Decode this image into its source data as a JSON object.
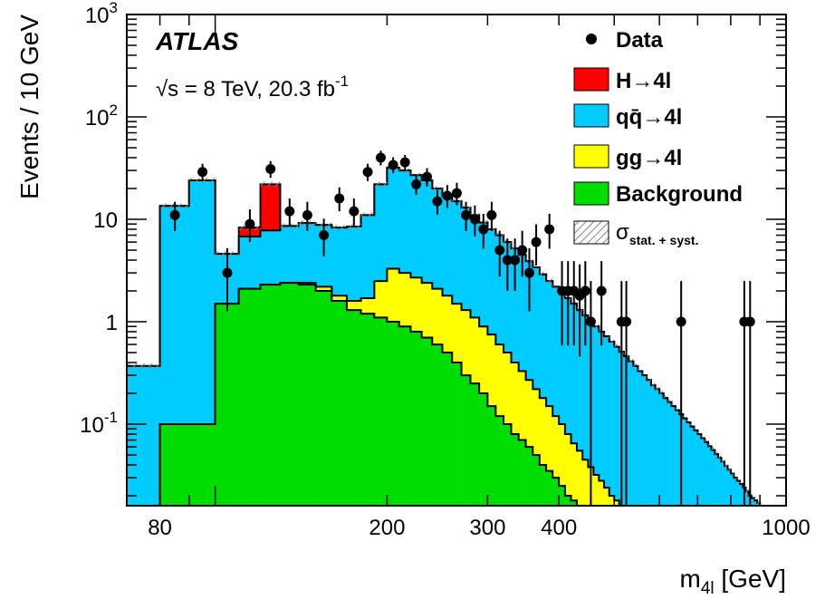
{
  "chart_data": {
    "type": "histogram",
    "experiment": "ATLAS",
    "energy_label": "√s = 8 TeV, 20.3 fb",
    "energy_sup": "-1",
    "xlabel": "m",
    "xlabel_sub": "4l",
    "xlabel_unit": " [GeV]",
    "ylabel": "Events / 10 GeV",
    "x_scale": "log",
    "y_scale": "log",
    "xlim": [
      70,
      1000
    ],
    "ylim": [
      0.016,
      1000
    ],
    "x_tick_labels": [
      {
        "value": 80,
        "label": "80"
      },
      {
        "value": 200,
        "label": "200"
      },
      {
        "value": 300,
        "label": "300"
      },
      {
        "value": 400,
        "label": "400"
      },
      {
        "value": 1000,
        "label": "1000"
      }
    ],
    "y_tick_labels": [
      {
        "value": 0.1,
        "base": "10",
        "exp": "-1"
      },
      {
        "value": 1,
        "base": "1",
        "exp": ""
      },
      {
        "value": 10,
        "base": "10",
        "exp": ""
      },
      {
        "value": 100,
        "base": "10",
        "exp": "2"
      },
      {
        "value": 1000,
        "base": "10",
        "exp": "3"
      }
    ],
    "colors": {
      "higgs": "#ff0000",
      "qqbar": "#00ccff",
      "gg": "#ffff00",
      "background": "#00dd00",
      "data": "#000000",
      "uncertainty": "#888888"
    },
    "legend": {
      "position": "top-right",
      "entries": [
        {
          "key": "data",
          "label": "Data",
          "style": "marker"
        },
        {
          "key": "higgs",
          "label": "H→4l",
          "style": "fill"
        },
        {
          "key": "qqbar",
          "label": "qq̄→4l",
          "style": "fill"
        },
        {
          "key": "gg",
          "label": "gg→4l",
          "style": "fill"
        },
        {
          "key": "background",
          "label": "Background",
          "style": "fill"
        },
        {
          "key": "uncertainty",
          "label": "σ",
          "sub": "stat. + syst.",
          "style": "hatch"
        }
      ]
    },
    "bin_edges": [
      70,
      80,
      90,
      100,
      110,
      120,
      130,
      140,
      150,
      160,
      170,
      180,
      190,
      200,
      210,
      220,
      230,
      240,
      250,
      260,
      270,
      280,
      290,
      300,
      310,
      320,
      330,
      340,
      350,
      360,
      370,
      380,
      390,
      400,
      410,
      420,
      430,
      440,
      450,
      460,
      470,
      480,
      490,
      500,
      510,
      520,
      530,
      540,
      550,
      560,
      570,
      580,
      590,
      600,
      610,
      620,
      630,
      640,
      650,
      660,
      670,
      680,
      690,
      700,
      710,
      720,
      730,
      740,
      750,
      760,
      770,
      780,
      790,
      800,
      810,
      820,
      830,
      840,
      850,
      860,
      870,
      880,
      890,
      900,
      910,
      920,
      930,
      940,
      950,
      960,
      970,
      980,
      990,
      1000
    ],
    "series": [
      {
        "key": "background",
        "name": "Background",
        "values": [
          0.016,
          0.1,
          0.1,
          1.5,
          2.1,
          2.3,
          2.4,
          2.3,
          2.0,
          1.6,
          1.3,
          1.2,
          1.1,
          1.0,
          0.9,
          0.8,
          0.7,
          0.6,
          0.5,
          0.4,
          0.3,
          0.25,
          0.2,
          0.15,
          0.12,
          0.1,
          0.08,
          0.07,
          0.06,
          0.05,
          0.04,
          0.035,
          0.03,
          0.025,
          0.02,
          0.018,
          0.016,
          0.016,
          0.016,
          0.016,
          0.016,
          0.016,
          0.016,
          0.016,
          0.016,
          0.016,
          0.016,
          0.016,
          0.016,
          0.016,
          0.016,
          0.016,
          0.016,
          0.016,
          0.016,
          0.016,
          0.016,
          0.016,
          0.016,
          0.016,
          0.016,
          0.016,
          0.016,
          0.016,
          0.016,
          0.016,
          0.016,
          0.016,
          0.016,
          0.016,
          0.016,
          0.016,
          0.016,
          0.016,
          0.016,
          0.016,
          0.016,
          0.016,
          0.016,
          0.016,
          0.016,
          0.016,
          0.016,
          0.016,
          0.016,
          0.016,
          0.016,
          0.016,
          0.016,
          0.016,
          0.016,
          0.016,
          0.016
        ]
      },
      {
        "key": "gg",
        "name": "gg→4l",
        "values": [
          0.016,
          0.1,
          0.1,
          1.5,
          2.1,
          2.3,
          2.4,
          2.4,
          2.2,
          1.8,
          1.6,
          1.7,
          2.5,
          3.3,
          3.0,
          2.7,
          2.4,
          2.1,
          1.8,
          1.5,
          1.3,
          1.1,
          0.9,
          0.75,
          0.6,
          0.5,
          0.4,
          0.33,
          0.27,
          0.22,
          0.18,
          0.15,
          0.12,
          0.1,
          0.08,
          0.065,
          0.055,
          0.045,
          0.038,
          0.032,
          0.028,
          0.024,
          0.02,
          0.018,
          0.016,
          0.016,
          0.016,
          0.016,
          0.016,
          0.016,
          0.016,
          0.016,
          0.016,
          0.016,
          0.016,
          0.016,
          0.016,
          0.016,
          0.016,
          0.016,
          0.016,
          0.016,
          0.016,
          0.016,
          0.016,
          0.016,
          0.016,
          0.016,
          0.016,
          0.016,
          0.016,
          0.016,
          0.016,
          0.016,
          0.016,
          0.016,
          0.016,
          0.016,
          0.016,
          0.016,
          0.016,
          0.016,
          0.016,
          0.016,
          0.016,
          0.016,
          0.016,
          0.016,
          0.016,
          0.016,
          0.016,
          0.016,
          0.016
        ]
      },
      {
        "key": "qqbar",
        "name": "qq̄→4l",
        "values": [
          0.37,
          13.5,
          24,
          4.6,
          6.8,
          7.8,
          8.6,
          9.2,
          8.8,
          8.3,
          8.5,
          11,
          22,
          32,
          30,
          27,
          24,
          20,
          17,
          15,
          13,
          11,
          9.3,
          8,
          7,
          6,
          5.2,
          4.5,
          3.9,
          3.4,
          2.9,
          2.5,
          2.2,
          1.9,
          1.7,
          1.5,
          1.3,
          1.15,
          1.0,
          0.9,
          0.8,
          0.72,
          0.64,
          0.57,
          0.51,
          0.46,
          0.41,
          0.37,
          0.33,
          0.3,
          0.27,
          0.24,
          0.22,
          0.2,
          0.18,
          0.165,
          0.15,
          0.137,
          0.125,
          0.114,
          0.104,
          0.095,
          0.087,
          0.08,
          0.073,
          0.067,
          0.061,
          0.056,
          0.051,
          0.047,
          0.043,
          0.039,
          0.036,
          0.033,
          0.03,
          0.028,
          0.026,
          0.024,
          0.022,
          0.02,
          0.019,
          0.018,
          0.017,
          0.016,
          0.016,
          0.016,
          0.016,
          0.016,
          0.016,
          0.016,
          0.016,
          0.016,
          0.016
        ]
      },
      {
        "key": "higgs",
        "name": "H→4l",
        "values": [
          0.37,
          13.5,
          24,
          4.6,
          8.3,
          22,
          8.6,
          9.2,
          8.8,
          8.3,
          8.5,
          11,
          22,
          32,
          30,
          27,
          24,
          20,
          17,
          15,
          13,
          11,
          9.3,
          8,
          7,
          6,
          5.2,
          4.5,
          3.9,
          3.4,
          2.9,
          2.5,
          2.2,
          1.9,
          1.7,
          1.5,
          1.3,
          1.15,
          1.0,
          0.9,
          0.8,
          0.72,
          0.64,
          0.57,
          0.51,
          0.46,
          0.41,
          0.37,
          0.33,
          0.3,
          0.27,
          0.24,
          0.22,
          0.2,
          0.18,
          0.165,
          0.15,
          0.137,
          0.125,
          0.114,
          0.104,
          0.095,
          0.087,
          0.08,
          0.073,
          0.067,
          0.061,
          0.056,
          0.051,
          0.047,
          0.043,
          0.039,
          0.036,
          0.033,
          0.03,
          0.028,
          0.026,
          0.024,
          0.022,
          0.02,
          0.019,
          0.018,
          0.017,
          0.016,
          0.016,
          0.016,
          0.016,
          0.016,
          0.016,
          0.016,
          0.016,
          0.016,
          0.016
        ]
      }
    ],
    "data_points": [
      {
        "x": 85,
        "y": 11
      },
      {
        "x": 95,
        "y": 29
      },
      {
        "x": 105,
        "y": 3
      },
      {
        "x": 115,
        "y": 9
      },
      {
        "x": 125,
        "y": 31
      },
      {
        "x": 135,
        "y": 12
      },
      {
        "x": 145,
        "y": 11
      },
      {
        "x": 155,
        "y": 7
      },
      {
        "x": 165,
        "y": 16
      },
      {
        "x": 175,
        "y": 12
      },
      {
        "x": 185,
        "y": 29
      },
      {
        "x": 195,
        "y": 40
      },
      {
        "x": 205,
        "y": 34
      },
      {
        "x": 215,
        "y": 36
      },
      {
        "x": 225,
        "y": 22
      },
      {
        "x": 235,
        "y": 26
      },
      {
        "x": 245,
        "y": 15
      },
      {
        "x": 255,
        "y": 17
      },
      {
        "x": 265,
        "y": 18
      },
      {
        "x": 275,
        "y": 11
      },
      {
        "x": 285,
        "y": 10
      },
      {
        "x": 295,
        "y": 8
      },
      {
        "x": 305,
        "y": 11
      },
      {
        "x": 315,
        "y": 5
      },
      {
        "x": 325,
        "y": 4
      },
      {
        "x": 335,
        "y": 4
      },
      {
        "x": 345,
        "y": 5
      },
      {
        "x": 355,
        "y": 3
      },
      {
        "x": 365,
        "y": 6
      },
      {
        "x": 385,
        "y": 8
      },
      {
        "x": 405,
        "y": 2
      },
      {
        "x": 415,
        "y": 2
      },
      {
        "x": 425,
        "y": 2
      },
      {
        "x": 435,
        "y": 1.8
      },
      {
        "x": 445,
        "y": 2
      },
      {
        "x": 455,
        "y": 1
      },
      {
        "x": 475,
        "y": 2
      },
      {
        "x": 515,
        "y": 1
      },
      {
        "x": 525,
        "y": 1
      },
      {
        "x": 655,
        "y": 1
      },
      {
        "x": 845,
        "y": 1
      },
      {
        "x": 865,
        "y": 1
      }
    ]
  }
}
